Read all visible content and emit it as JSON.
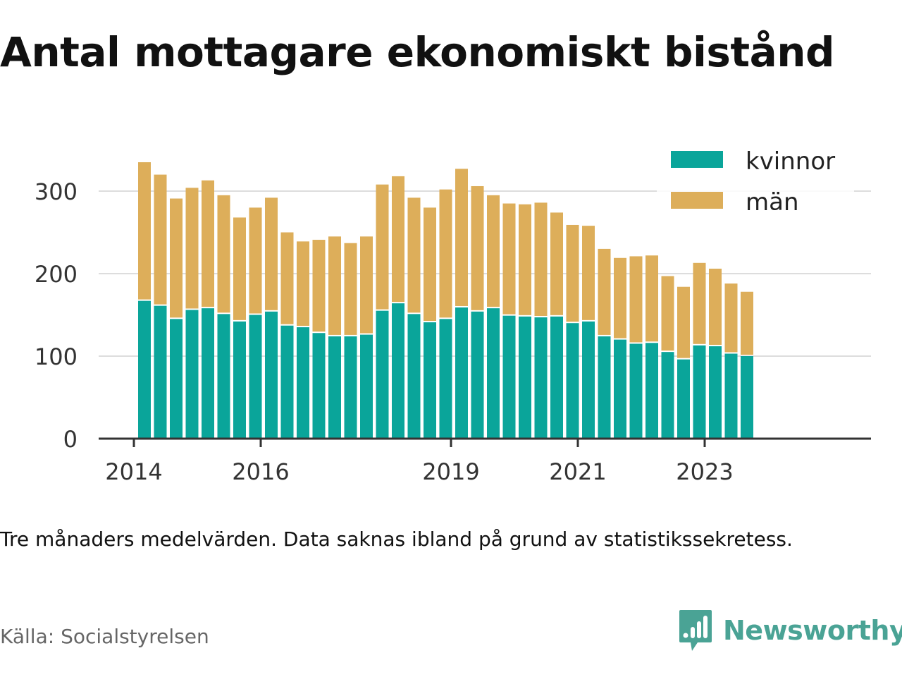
{
  "title": "Antal mottagare ekonomiskt bistånd",
  "note": "Tre månaders medelvärden. Data saknas ibland på grund av statistikssekretess.",
  "source": "Källa: Socialstyrelsen",
  "brand": {
    "name": "Newsworthy",
    "icon": "newsworthy-logo-icon",
    "color": "#4aa395"
  },
  "colors": {
    "kvinnor": "#0aa59a",
    "man": "#ddae5a",
    "grid": "#dddddd",
    "axis": "#333333"
  },
  "chart_data": {
    "type": "bar",
    "stacked": true,
    "legend_position": "top-right",
    "grid": true,
    "ylim": [
      0,
      340
    ],
    "y_ticks": [
      0,
      100,
      200,
      300
    ],
    "x_ticks": [
      "2014",
      "2016",
      "2019",
      "2021",
      "2023"
    ],
    "x_range": [
      "2013-10",
      "2024-09"
    ],
    "series": [
      {
        "name": "kvinnor",
        "color": "#0aa59a",
        "values": [
          167,
          161,
          145,
          156,
          158,
          151,
          142,
          150,
          154,
          137,
          135,
          128,
          124,
          124,
          126,
          155,
          164,
          151,
          141,
          145,
          159,
          154,
          158,
          149,
          148,
          147,
          148,
          140,
          142,
          124,
          120,
          115,
          116,
          105,
          96,
          113,
          112,
          103,
          100
        ]
      },
      {
        "name": "män",
        "color": "#ddae5a",
        "values": [
          168,
          159,
          146,
          148,
          155,
          144,
          126,
          130,
          138,
          113,
          104,
          113,
          121,
          113,
          119,
          153,
          154,
          141,
          139,
          157,
          168,
          152,
          137,
          136,
          136,
          139,
          126,
          119,
          116,
          106,
          99,
          106,
          106,
          92,
          88,
          100,
          94,
          85,
          78
        ]
      }
    ],
    "x": [
      "2014-03",
      "2014-06",
      "2014-09",
      "2014-12",
      "2015-03",
      "2015-06",
      "2015-09",
      "2015-12",
      "2016-03",
      "2016-06",
      "2016-09",
      "2016-12",
      "2017-03",
      "2017-06",
      "2017-09",
      "2017-12",
      "2018-03",
      "2018-06",
      "2018-09",
      "2018-12",
      "2019-03",
      "2019-06",
      "2019-09",
      "2019-12",
      "2020-03",
      "2020-06",
      "2020-09",
      "2020-12",
      "2021-03",
      "2021-06",
      "2021-09",
      "2021-12",
      "2022-03",
      "2022-06",
      "2022-09",
      "2022-12",
      "2023-03",
      "2023-06",
      "2023-09"
    ]
  }
}
